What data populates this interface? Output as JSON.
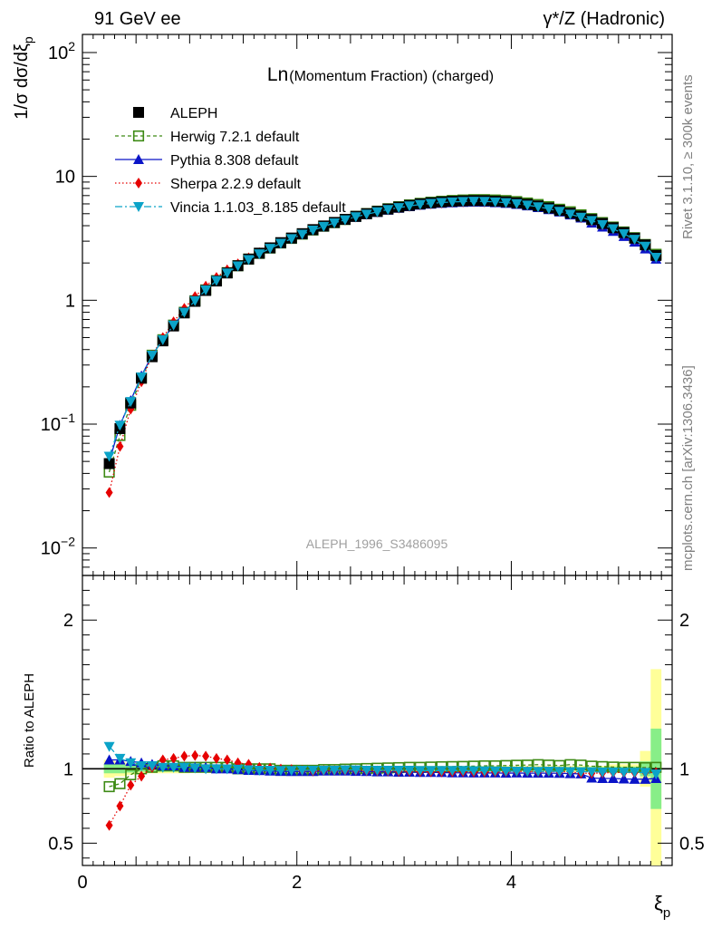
{
  "header": {
    "left": "91 GeV ee",
    "right": "γ*/Z (Hadronic)"
  },
  "side_labels": {
    "rivet": "Rivet 3.1.10, ≥ 300k events",
    "mcplots": "mcplots.cern.ch [arXiv:1306.3436]"
  },
  "watermark": "ALEPH_1996_S3486095",
  "colors": {
    "aleph": "#000000",
    "herwig": "#3d8a14",
    "pythia": "#0a14c8",
    "sherpa": "#e60000",
    "vincia": "#0ba3c8",
    "band_inner": "#88ee88",
    "band_outer": "#ffff99"
  },
  "chart_data": [
    {
      "type": "scatter",
      "title": "Ln(Momentum Fraction) (charged)",
      "title_main": "Ln",
      "title_rest": "(Momentum Fraction) (charged)",
      "ylabel": "1/σ dσ/dξp",
      "xlabel": "ξp",
      "yscale": "log",
      "xlim": [
        0,
        5.5
      ],
      "ylim": [
        0.006,
        140
      ],
      "y_ticks": [
        {
          "value": 0.01,
          "base": "10",
          "exp": "−2"
        },
        {
          "value": 0.1,
          "base": "10",
          "exp": "−1"
        },
        {
          "value": 1,
          "base": "1",
          "exp": ""
        },
        {
          "value": 10,
          "base": "10",
          "exp": ""
        },
        {
          "value": 100,
          "base": "10",
          "exp": "2"
        }
      ],
      "x": [
        0.25,
        0.35,
        0.45,
        0.55,
        0.65,
        0.75,
        0.85,
        0.95,
        1.05,
        1.15,
        1.25,
        1.35,
        1.45,
        1.55,
        1.65,
        1.75,
        1.85,
        1.95,
        2.05,
        2.15,
        2.25,
        2.35,
        2.45,
        2.55,
        2.65,
        2.75,
        2.85,
        2.95,
        3.05,
        3.15,
        3.25,
        3.35,
        3.45,
        3.55,
        3.65,
        3.75,
        3.85,
        3.95,
        4.05,
        4.15,
        4.25,
        4.35,
        4.45,
        4.55,
        4.65,
        4.75,
        4.85,
        4.95,
        5.05,
        5.15,
        5.25,
        5.35
      ],
      "series": [
        {
          "name": "ALEPH",
          "legend": "ALEPH",
          "values": [
            0.048,
            0.092,
            0.148,
            0.235,
            0.35,
            0.47,
            0.62,
            0.79,
            0.98,
            1.2,
            1.43,
            1.66,
            1.9,
            2.15,
            2.4,
            2.65,
            2.92,
            3.18,
            3.45,
            3.72,
            3.98,
            4.25,
            4.5,
            4.76,
            5.0,
            5.22,
            5.45,
            5.65,
            5.83,
            6.0,
            6.12,
            6.22,
            6.3,
            6.35,
            6.38,
            6.37,
            6.32,
            6.24,
            6.12,
            5.96,
            5.78,
            5.56,
            5.32,
            5.05,
            4.78,
            4.48,
            4.17,
            3.85,
            3.52,
            3.17,
            2.8,
            2.3
          ]
        },
        {
          "name": "Herwig 7.2.1 default",
          "legend": "Herwig 7.2.1 default",
          "values": [
            0.041,
            0.081,
            0.142,
            0.235,
            0.36,
            0.48,
            0.63,
            0.8,
            0.99,
            1.21,
            1.44,
            1.67,
            1.9,
            2.15,
            2.39,
            2.64,
            2.9,
            3.16,
            3.42,
            3.69,
            3.96,
            4.23,
            4.49,
            4.76,
            5.01,
            5.24,
            5.48,
            5.69,
            5.89,
            6.06,
            6.19,
            6.3,
            6.39,
            6.45,
            6.49,
            6.49,
            6.45,
            6.38,
            6.26,
            6.1,
            5.93,
            5.7,
            5.43,
            5.18,
            4.9,
            4.56,
            4.24,
            3.9,
            3.56,
            3.2,
            2.82,
            2.35
          ],
          "ratio": [
            0.88,
            0.9,
            0.96,
            1.0,
            1.01,
            1.02,
            1.02,
            1.01,
            1.01,
            1.01,
            1.01,
            1.01,
            1.0,
            1.0,
            1.0,
            1.0,
            0.99,
            0.99,
            0.99,
            0.99,
            0.995,
            0.995,
            0.998,
            1.0,
            1.002,
            1.004,
            1.006,
            1.008,
            1.01,
            1.01,
            1.012,
            1.014,
            1.015,
            1.016,
            1.018,
            1.02,
            1.02,
            1.022,
            1.024,
            1.025,
            1.028,
            1.025,
            1.022,
            1.028,
            1.025,
            1.018,
            1.015,
            1.012,
            1.01,
            1.01,
            1.008,
            1.01
          ]
        },
        {
          "name": "Pythia 8.308 default",
          "legend": "Pythia 8.308 default",
          "values": [
            0.05,
            0.098,
            0.155,
            0.245,
            0.36,
            0.48,
            0.63,
            0.8,
            0.99,
            1.21,
            1.44,
            1.67,
            1.89,
            2.13,
            2.37,
            2.61,
            2.87,
            3.13,
            3.39,
            3.66,
            3.92,
            4.19,
            4.43,
            4.68,
            4.91,
            5.12,
            5.34,
            5.53,
            5.7,
            5.86,
            5.97,
            6.06,
            6.13,
            6.18,
            6.2,
            6.19,
            6.14,
            6.06,
            5.95,
            5.79,
            5.61,
            5.4,
            5.16,
            4.89,
            4.62,
            4.2,
            3.9,
            3.6,
            3.28,
            2.95,
            2.6,
            2.15
          ],
          "ratio": [
            1.06,
            1.06,
            1.05,
            1.04,
            1.03,
            1.02,
            1.02,
            1.01,
            1.01,
            1.01,
            1.0,
            1.0,
            0.995,
            0.99,
            0.988,
            0.985,
            0.983,
            0.982,
            0.982,
            0.982,
            0.985,
            0.985,
            0.985,
            0.983,
            0.982,
            0.98,
            0.98,
            0.978,
            0.978,
            0.976,
            0.976,
            0.975,
            0.973,
            0.973,
            0.972,
            0.972,
            0.972,
            0.971,
            0.972,
            0.971,
            0.971,
            0.971,
            0.97,
            0.968,
            0.966,
            0.938,
            0.935,
            0.935,
            0.932,
            0.93,
            0.93,
            0.935
          ]
        },
        {
          "name": "Sherpa 2.2.9 default",
          "legend": "Sherpa 2.2.9 default",
          "values": [
            0.028,
            0.066,
            0.132,
            0.22,
            0.36,
            0.5,
            0.67,
            0.86,
            1.07,
            1.3,
            1.53,
            1.76,
            1.97,
            2.2,
            2.42,
            2.66,
            2.91,
            3.16,
            3.41,
            3.66,
            3.93,
            4.2,
            4.45,
            4.71,
            4.93,
            5.15,
            5.37,
            5.55,
            5.73,
            5.88,
            6.0,
            6.09,
            6.17,
            6.22,
            6.24,
            6.23,
            6.19,
            6.12,
            6.01,
            5.85,
            5.67,
            5.46,
            5.21,
            4.95,
            4.64,
            4.35,
            4.05,
            3.76,
            3.43,
            3.09,
            2.73,
            2.24
          ],
          "ratio": [
            0.62,
            0.75,
            0.89,
            0.95,
            1.01,
            1.06,
            1.07,
            1.085,
            1.09,
            1.085,
            1.07,
            1.06,
            1.04,
            1.03,
            1.01,
            1.005,
            0.998,
            0.995,
            0.99,
            0.985,
            0.988,
            0.988,
            0.99,
            0.99,
            0.987,
            0.986,
            0.985,
            0.983,
            0.983,
            0.981,
            0.98,
            0.979,
            0.979,
            0.98,
            0.978,
            0.978,
            0.979,
            0.98,
            0.982,
            0.982,
            0.98,
            0.982,
            0.98,
            0.98,
            0.97,
            0.97,
            0.972,
            0.976,
            0.975,
            0.974,
            0.975,
            0.974
          ]
        },
        {
          "name": "Vincia 1.1.03_8.185 default",
          "legend": "Vincia 1.1.03_8.185 default",
          "values": [
            0.055,
            0.098,
            0.152,
            0.24,
            0.36,
            0.48,
            0.63,
            0.8,
            0.99,
            1.21,
            1.44,
            1.66,
            1.89,
            2.13,
            2.37,
            2.62,
            2.88,
            3.14,
            3.41,
            3.68,
            3.94,
            4.21,
            4.46,
            4.72,
            4.95,
            5.17,
            5.4,
            5.59,
            5.77,
            5.93,
            6.05,
            6.15,
            6.22,
            6.27,
            6.29,
            6.28,
            6.22,
            6.14,
            6.02,
            5.86,
            5.68,
            5.47,
            5.22,
            4.95,
            4.68,
            4.4,
            4.08,
            3.77,
            3.44,
            3.1,
            2.73,
            2.22
          ],
          "ratio": [
            1.15,
            1.07,
            1.04,
            1.02,
            1.02,
            1.01,
            1.01,
            1.01,
            1.005,
            1.0,
            1.0,
            0.999,
            0.997,
            0.993,
            0.99,
            0.99,
            0.988,
            0.988,
            0.99,
            0.99,
            0.99,
            0.99,
            0.992,
            0.992,
            0.99,
            0.99,
            0.99,
            0.99,
            0.99,
            0.988,
            0.988,
            0.988,
            0.988,
            0.988,
            0.987,
            0.986,
            0.985,
            0.984,
            0.984,
            0.983,
            0.982,
            0.984,
            0.982,
            0.981,
            0.98,
            0.98,
            0.978,
            0.978,
            0.977,
            0.977,
            0.975,
            0.965
          ]
        }
      ]
    },
    {
      "type": "scatter",
      "title": "Ratio to ALEPH",
      "ylabel": "Ratio to ALEPH",
      "xlabel": "ξp",
      "xlim": [
        0,
        5.5
      ],
      "ylim": [
        0.35,
        2.3
      ],
      "y_ticks_left": [
        "0.5",
        "1",
        "2"
      ],
      "y_ticks_right": [
        "0.5",
        "1",
        "2"
      ],
      "x_ticks": [
        "0",
        "2",
        "4"
      ],
      "reference": 1.0,
      "band_inner_halfwidth": [
        0.03,
        0.03,
        0.025,
        0.02,
        0.02,
        0.02,
        0.02,
        0.02,
        0.015,
        0.015,
        0.015,
        0.015,
        0.015,
        0.015,
        0.015,
        0.015,
        0.012,
        0.012,
        0.012,
        0.012,
        0.012,
        0.012,
        0.012,
        0.012,
        0.012,
        0.012,
        0.012,
        0.012,
        0.012,
        0.012,
        0.012,
        0.012,
        0.012,
        0.012,
        0.012,
        0.012,
        0.012,
        0.012,
        0.012,
        0.012,
        0.012,
        0.012,
        0.012,
        0.012,
        0.012,
        0.012,
        0.012,
        0.015,
        0.015,
        0.015,
        0.05,
        0.27
      ],
      "band_outer_halfwidth": [
        0.06,
        0.05,
        0.04,
        0.035,
        0.03,
        0.03,
        0.03,
        0.03,
        0.025,
        0.025,
        0.025,
        0.025,
        0.02,
        0.02,
        0.02,
        0.02,
        0.02,
        0.02,
        0.02,
        0.02,
        0.02,
        0.02,
        0.02,
        0.02,
        0.02,
        0.02,
        0.02,
        0.02,
        0.02,
        0.02,
        0.02,
        0.02,
        0.02,
        0.02,
        0.02,
        0.02,
        0.02,
        0.02,
        0.02,
        0.02,
        0.02,
        0.02,
        0.02,
        0.02,
        0.02,
        0.02,
        0.02,
        0.03,
        0.03,
        0.03,
        0.12,
        0.67
      ]
    }
  ]
}
